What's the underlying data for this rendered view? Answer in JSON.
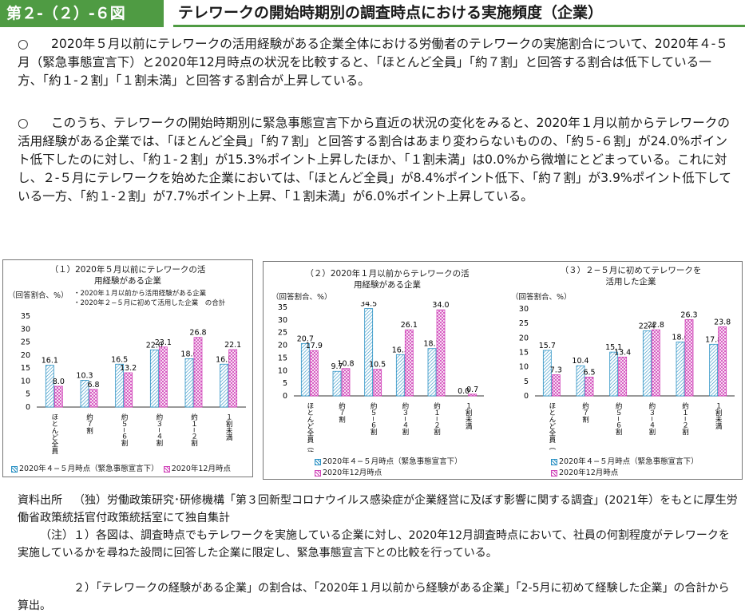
{
  "header": {
    "figure_number": "第２-（２）-６図",
    "title": "テレワークの開始時期別の調査時点における実施頻度（企業）"
  },
  "paragraphs": [
    {
      "mark": "○",
      "text": "2020年５月以前にテレワークの活用経験がある企業全体における労働者のテレワークの実施割合について、2020年４-５月（緊急事態宣言下）と2020年12月時点の状況を比較すると、「ほとんど全員」「約７割」と回答する割合は低下している一方、「約１-２割」「１割未満」と回答する割合が上昇している。"
    },
    {
      "mark": "○",
      "text": "このうち、テレワークの開始時期別に緊急事態宣言下から直近の状況の変化をみると、2020年１月以前からテレワークの活用経験がある企業では、「ほとんど全員」「約７割」と回答する割合はあまり変わらないものの、「約５-６割」が24.0%ポイント低下したのに対し、「約１-２割」が15.3%ポイント上昇したほか、「１割未満」は0.0%から微増にとどまっている。これに対し、２-５月にテレワークを始めた企業においては、「ほとんど全員」が8.4%ポイント低下、「約７割」が3.9%ポイント低下している一方、「約１-２割」が7.7%ポイント上昇、「１割未満」が6.0%ポイント上昇している。"
    }
  ],
  "legend": {
    "series_a": "2020年４−５月時点（緊急事態宣言下）",
    "series_b": "2020年12月時点"
  },
  "chart_data": [
    {
      "type": "bar",
      "title": "（１）2020年５月以前にテレワークの活用経験がある企業",
      "ylabel": "（回答割合、%）",
      "notes": [
        "・2020年１月以前から活用経験がある企業",
        "・2020年２−５月に初めて活用した企業　の合計"
      ],
      "categories": [
        "ほとんど全員（約８−10割）",
        "約７割",
        "約５−６割",
        "約３−４割",
        "約１−２割",
        "１割未満"
      ],
      "ylim": [
        0,
        35
      ],
      "yticks": [
        0,
        5,
        10,
        15,
        20,
        25,
        30,
        35
      ],
      "series": [
        {
          "name": "2020年４−５月時点（緊急事態宣言下）",
          "values": [
            16.1,
            10.3,
            16.5,
            22.0,
            18.6,
            16.5
          ]
        },
        {
          "name": "2020年12月時点",
          "values": [
            8.0,
            6.8,
            13.2,
            23.1,
            26.8,
            22.1
          ]
        }
      ]
    },
    {
      "type": "bar",
      "title": "（２）2020年１月以前からテレワークの活用経験がある企業",
      "ylabel": "（回答割合、%）",
      "categories": [
        "ほとんど全員（約８−10割）",
        "約７割",
        "約５−６割",
        "約３−４割",
        "約１−２割",
        "１割未満"
      ],
      "ylim": [
        0,
        35
      ],
      "yticks": [
        0,
        5,
        10,
        15,
        20,
        25,
        30,
        35
      ],
      "series": [
        {
          "name": "2020年４−５月時点（緊急事態宣言下）",
          "values": [
            20.7,
            9.7,
            34.5,
            16.3,
            18.7,
            0.0
          ]
        },
        {
          "name": "2020年12月時点",
          "values": [
            17.9,
            10.8,
            10.5,
            26.1,
            34.0,
            0.7
          ]
        }
      ]
    },
    {
      "type": "bar",
      "title": "（３）２−５月に初めてテレワークを活用した企業",
      "ylabel": "（回答割合、%）",
      "categories": [
        "ほとんど全員（約８−10割）",
        "約７割",
        "約５−６割",
        "約３−４割",
        "約１−２割",
        "１割未満"
      ],
      "ylim": [
        0,
        30
      ],
      "yticks": [
        0,
        5,
        10,
        15,
        20,
        25,
        30
      ],
      "series": [
        {
          "name": "2020年４−５月時点（緊急事態宣言下）",
          "values": [
            15.7,
            10.4,
            15.1,
            22.4,
            18.6,
            17.8
          ]
        },
        {
          "name": "2020年12月時点",
          "values": [
            7.3,
            6.5,
            13.4,
            22.8,
            26.3,
            23.8
          ]
        }
      ]
    }
  ],
  "colors": {
    "series_a": "#2a91c4",
    "series_b": "#d042b8",
    "accent": "#4f9b43"
  },
  "footer": {
    "source_label": "資料出所",
    "source_text": "（独）労働政策研究･研修機構「第３回新型コロナウイルス感染症が企業経営に及ぼす影響に関する調査」(2021年）をもとに厚生労働省政策統括官付政策統括室にて独自集計",
    "note_label": "（注）",
    "note1": "１）各図は、調査時点でもテレワークを実施している企業に対し、2020年12月調査時点において、社員の何割程度がテレワークを実施しているかを尋ねた設問に回答した企業に限定し、緊急事態宣言下との比較を行っている。",
    "note2": "２）「テレワークの経験がある企業」の割合は、「2020年１月以前から経験がある企業」「2-5月に初めて経験した企業」の合計から算出。"
  }
}
